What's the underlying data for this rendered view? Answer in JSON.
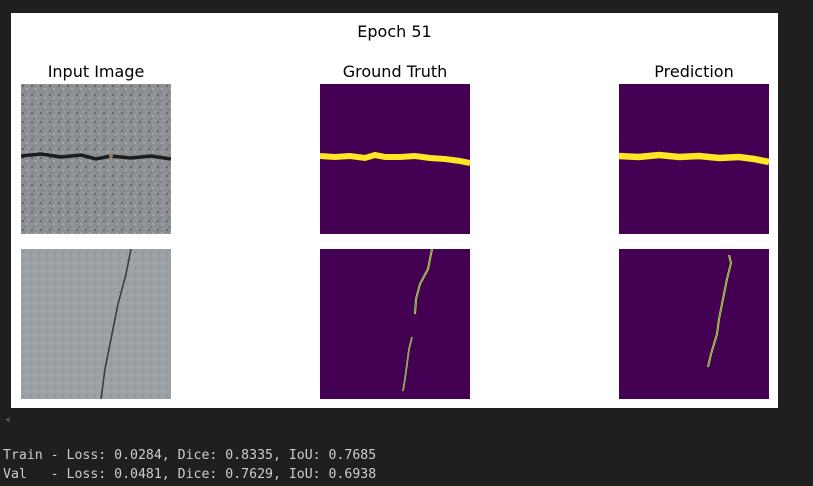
{
  "figure": {
    "title": "Epoch 51",
    "columns": [
      "Input Image",
      "Ground Truth",
      "Prediction"
    ]
  },
  "colors": {
    "mask_background": "#440154",
    "mask_crack": "#fde725",
    "mask_edge": "#21918c",
    "page_background": "#1f1f1f",
    "log_text": "#cccccc"
  },
  "scroll_indicator": "◂",
  "log": {
    "train": "Train - Loss: 0.0284, Dice: 0.8335, IoU: 0.7685",
    "val": "Val   - Loss: 0.0481, Dice: 0.7629, IoU: 0.6938"
  }
}
